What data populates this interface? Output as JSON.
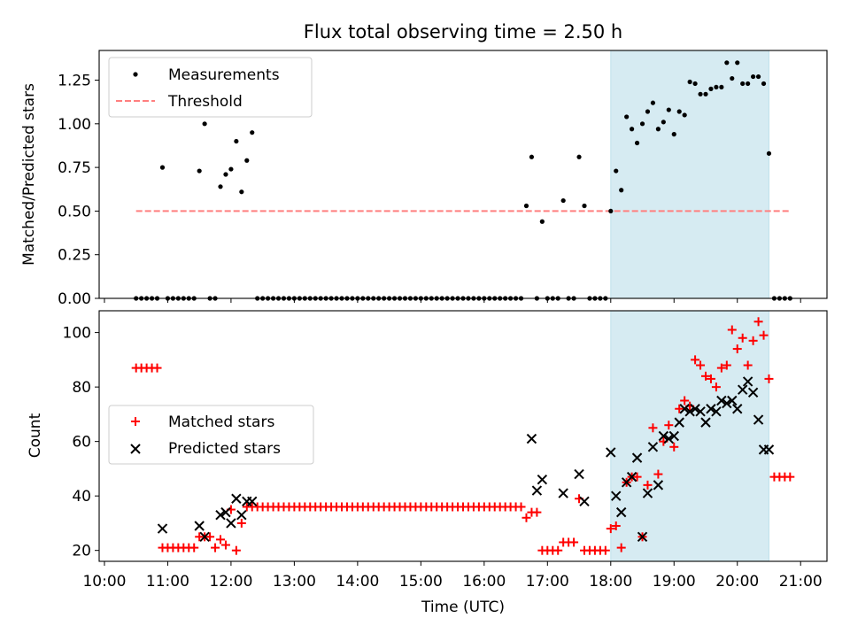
{
  "title": "Flux total observing time = 2.50 h",
  "colors": {
    "measurement": "#000000",
    "threshold": "#ff7f7f",
    "matched": "#ff0000",
    "predicted": "#000000",
    "shade": "#add8e6"
  },
  "chart_data": [
    {
      "type": "scatter",
      "ylabel": "Matched/Predicted stars",
      "yticks": [
        "0.00",
        "0.25",
        "0.50",
        "0.75",
        "1.00",
        "1.25"
      ],
      "ylim": [
        0,
        1.42
      ],
      "xlim": [
        "09:55",
        "21:25"
      ],
      "shaded_span": [
        "18:00",
        "20:30"
      ],
      "threshold": {
        "from": "10:30",
        "to": "20:50",
        "value": 0.5
      },
      "legend": {
        "placement": "top-left",
        "entries": [
          "Measurements",
          "Threshold"
        ]
      },
      "series": [
        {
          "name": "Measurements",
          "x": [
            "10:30",
            "10:35",
            "10:40",
            "10:45",
            "10:50",
            "10:55",
            "11:00",
            "11:05",
            "11:10",
            "11:15",
            "11:20",
            "11:25",
            "11:30",
            "11:35",
            "11:40",
            "11:45",
            "11:50",
            "11:55",
            "12:00",
            "12:05",
            "12:10",
            "12:15",
            "12:20",
            "12:25",
            "12:30",
            "12:35",
            "12:40",
            "12:45",
            "12:50",
            "12:55",
            "13:00",
            "13:05",
            "13:10",
            "13:15",
            "13:20",
            "13:25",
            "13:30",
            "13:35",
            "13:40",
            "13:45",
            "13:50",
            "13:55",
            "14:00",
            "14:05",
            "14:10",
            "14:15",
            "14:20",
            "14:25",
            "14:30",
            "14:35",
            "14:40",
            "14:45",
            "14:50",
            "14:55",
            "15:00",
            "15:05",
            "15:10",
            "15:15",
            "15:20",
            "15:25",
            "15:30",
            "15:35",
            "15:40",
            "15:45",
            "15:50",
            "15:55",
            "16:00",
            "16:05",
            "16:10",
            "16:15",
            "16:20",
            "16:25",
            "16:30",
            "16:35",
            "16:40",
            "16:45",
            "16:50",
            "16:55",
            "17:00",
            "17:05",
            "17:10",
            "17:15",
            "17:20",
            "17:25",
            "17:30",
            "17:35",
            "17:40",
            "17:45",
            "17:50",
            "17:55",
            "18:00",
            "18:05",
            "18:10",
            "18:15",
            "18:20",
            "18:25",
            "18:30",
            "18:35",
            "18:40",
            "18:45",
            "18:50",
            "18:55",
            "19:00",
            "19:05",
            "19:10",
            "19:15",
            "19:20",
            "19:25",
            "19:30",
            "19:35",
            "19:40",
            "19:45",
            "19:50",
            "19:55",
            "20:00",
            "20:05",
            "20:10",
            "20:15",
            "20:20",
            "20:25",
            "20:30",
            "20:35",
            "20:40",
            "20:45",
            "20:50"
          ],
          "y": [
            0,
            0,
            0,
            0,
            0,
            0.75,
            0,
            0,
            0,
            0,
            0,
            0,
            0.73,
            1.0,
            0,
            0,
            0.64,
            0.71,
            0.74,
            0.9,
            0.61,
            0.79,
            0.95,
            0,
            0,
            0,
            0,
            0,
            0,
            0,
            0,
            0,
            0,
            0,
            0,
            0,
            0,
            0,
            0,
            0,
            0,
            0,
            0,
            0,
            0,
            0,
            0,
            0,
            0,
            0,
            0,
            0,
            0,
            0,
            0,
            0,
            0,
            0,
            0,
            0,
            0,
            0,
            0,
            0,
            0,
            0,
            0,
            0,
            0,
            0,
            0,
            0,
            0,
            0,
            0.53,
            0.81,
            0,
            0.44,
            0,
            0,
            0,
            0.56,
            0,
            0,
            0.81,
            0.53,
            0,
            0,
            0,
            0,
            0.5,
            0.73,
            0.62,
            1.04,
            0.97,
            0.89,
            1.0,
            1.07,
            1.12,
            0.97,
            1.01,
            1.08,
            0.94,
            1.07,
            1.05,
            1.24,
            1.23,
            1.17,
            1.17,
            1.2,
            1.21,
            1.21,
            1.35,
            1.26,
            1.35,
            1.23,
            1.23,
            1.27,
            1.27,
            1.23,
            0.83,
            0,
            0,
            0,
            0
          ]
        }
      ]
    },
    {
      "type": "scatter",
      "ylabel": "Count",
      "xlabel": "Time (UTC)",
      "yticks": [
        "20",
        "40",
        "60",
        "80",
        "100"
      ],
      "ylim": [
        16,
        108
      ],
      "xlim": [
        "09:55",
        "21:25"
      ],
      "xticks": [
        "10:00",
        "11:00",
        "12:00",
        "13:00",
        "14:00",
        "15:00",
        "16:00",
        "17:00",
        "18:00",
        "19:00",
        "20:00",
        "21:00"
      ],
      "shaded_span": [
        "18:00",
        "20:30"
      ],
      "legend": {
        "placement": "center-left",
        "entries": [
          "Matched stars",
          "Predicted stars"
        ]
      },
      "series": [
        {
          "name": "Matched stars",
          "x": [
            "10:30",
            "10:35",
            "10:40",
            "10:45",
            "10:50",
            "10:55",
            "11:00",
            "11:05",
            "11:10",
            "11:15",
            "11:20",
            "11:25",
            "11:30",
            "11:35",
            "11:40",
            "11:45",
            "11:50",
            "11:55",
            "12:00",
            "12:05",
            "12:10",
            "12:15",
            "12:20",
            "12:25",
            "12:30",
            "12:35",
            "12:40",
            "12:45",
            "12:50",
            "12:55",
            "13:00",
            "13:05",
            "13:10",
            "13:15",
            "13:20",
            "13:25",
            "13:30",
            "13:35",
            "13:40",
            "13:45",
            "13:50",
            "13:55",
            "14:00",
            "14:05",
            "14:10",
            "14:15",
            "14:20",
            "14:25",
            "14:30",
            "14:35",
            "14:40",
            "14:45",
            "14:50",
            "14:55",
            "15:00",
            "15:05",
            "15:10",
            "15:15",
            "15:20",
            "15:25",
            "15:30",
            "15:35",
            "15:40",
            "15:45",
            "15:50",
            "15:55",
            "16:00",
            "16:05",
            "16:10",
            "16:15",
            "16:20",
            "16:25",
            "16:30",
            "16:35",
            "16:40",
            "16:45",
            "16:50",
            "16:55",
            "17:00",
            "17:05",
            "17:10",
            "17:15",
            "17:20",
            "17:25",
            "17:30",
            "17:35",
            "17:40",
            "17:45",
            "17:50",
            "17:55",
            "18:00",
            "18:05",
            "18:10",
            "18:15",
            "18:20",
            "18:25",
            "18:30",
            "18:35",
            "18:40",
            "18:45",
            "18:50",
            "18:55",
            "19:00",
            "19:05",
            "19:10",
            "19:15",
            "19:20",
            "19:25",
            "19:30",
            "19:35",
            "19:40",
            "19:45",
            "19:50",
            "19:55",
            "20:00",
            "20:05",
            "20:10",
            "20:15",
            "20:20",
            "20:25",
            "20:30",
            "20:35",
            "20:40",
            "20:45",
            "20:50"
          ],
          "y": [
            87,
            87,
            87,
            87,
            87,
            21,
            21,
            21,
            21,
            21,
            21,
            21,
            25,
            25,
            25,
            21,
            24,
            22,
            35,
            20,
            30,
            36,
            36,
            36,
            36,
            36,
            36,
            36,
            36,
            36,
            36,
            36,
            36,
            36,
            36,
            36,
            36,
            36,
            36,
            36,
            36,
            36,
            36,
            36,
            36,
            36,
            36,
            36,
            36,
            36,
            36,
            36,
            36,
            36,
            36,
            36,
            36,
            36,
            36,
            36,
            36,
            36,
            36,
            36,
            36,
            36,
            36,
            36,
            36,
            36,
            36,
            36,
            36,
            36,
            32,
            34,
            34,
            20,
            20,
            20,
            20,
            23,
            23,
            23,
            39,
            20,
            20,
            20,
            20,
            20,
            28,
            29,
            21,
            45,
            47,
            47,
            25,
            44,
            65,
            48,
            60,
            66,
            58,
            72,
            75,
            73,
            90,
            88,
            84,
            83,
            80,
            87,
            88,
            101,
            94,
            98,
            88,
            97,
            104,
            99,
            83,
            47,
            47,
            47,
            47
          ]
        },
        {
          "name": "Predicted stars",
          "x": [
            "10:55",
            "11:30",
            "11:35",
            "11:50",
            "11:55",
            "12:00",
            "12:05",
            "12:10",
            "12:15",
            "12:20",
            "16:45",
            "16:50",
            "16:55",
            "17:15",
            "17:30",
            "17:35",
            "18:00",
            "18:05",
            "18:10",
            "18:15",
            "18:20",
            "18:25",
            "18:30",
            "18:35",
            "18:40",
            "18:45",
            "18:50",
            "18:55",
            "19:00",
            "19:05",
            "19:10",
            "19:15",
            "19:20",
            "19:25",
            "19:30",
            "19:35",
            "19:40",
            "19:45",
            "19:50",
            "19:55",
            "20:00",
            "20:05",
            "20:10",
            "20:15",
            "20:20",
            "20:25",
            "20:30"
          ],
          "y": [
            28,
            29,
            25,
            33,
            34,
            30,
            39,
            33,
            38,
            38,
            61,
            42,
            46,
            41,
            48,
            38,
            56,
            40,
            34,
            45,
            47,
            54,
            25,
            41,
            58,
            44,
            62,
            61,
            62,
            67,
            72,
            71,
            72,
            71,
            67,
            72,
            71,
            75,
            74,
            75,
            72,
            79,
            82,
            78,
            68,
            57,
            57
          ]
        }
      ]
    }
  ]
}
